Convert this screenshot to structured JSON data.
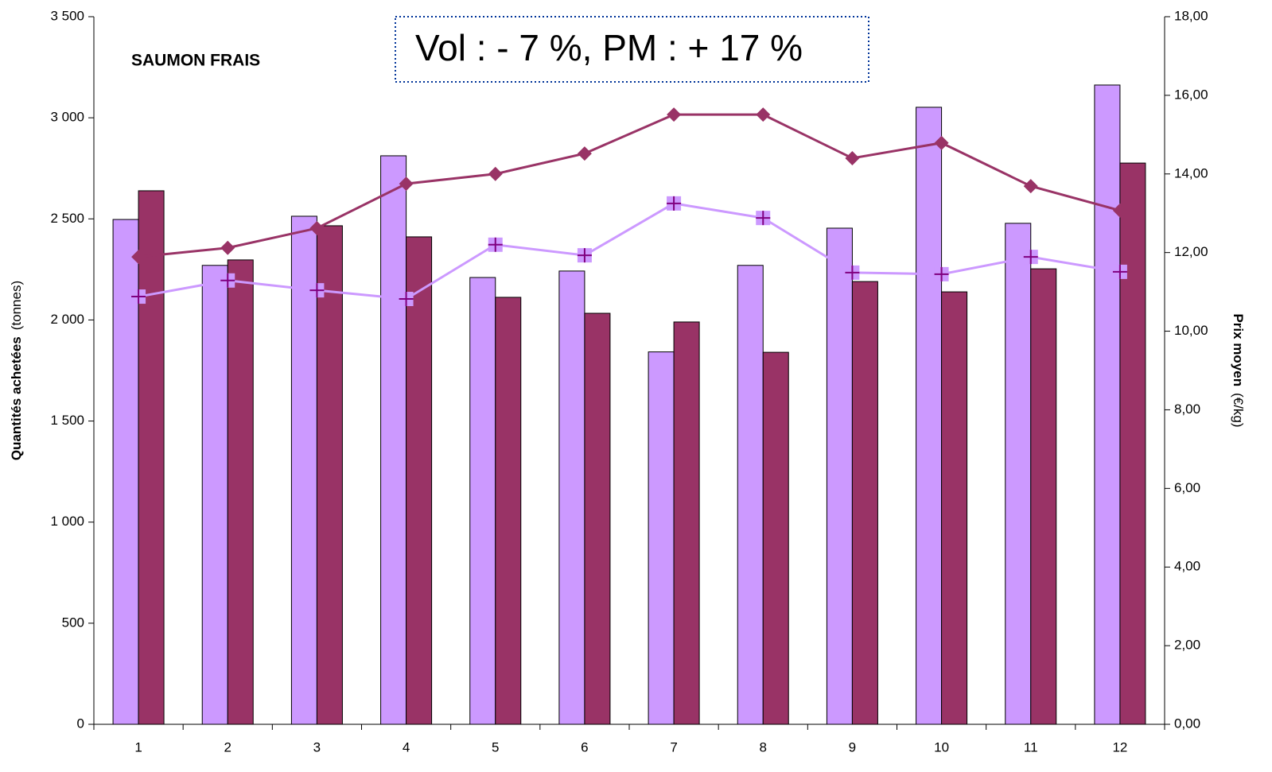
{
  "chart_data": {
    "type": "bar_line",
    "title": "SAUMON FRAIS",
    "title_color": "#ff00ff",
    "annotation": "Vol : - 7 %, PM : + 17 %",
    "annotation_color": "#003399",
    "y_label": {
      "main": "Quantités achetées",
      "unit": "(tonnes)"
    },
    "y2_label": {
      "main": "Prix moyen",
      "unit": "(€/kg)"
    },
    "categories": [
      "1",
      "2",
      "3",
      "4",
      "5",
      "6",
      "7",
      "8",
      "9",
      "10",
      "11",
      "12"
    ],
    "ylim": [
      0,
      3500
    ],
    "yticks": [
      0,
      500,
      {
        "value": 1000,
        "label": "1 000"
      },
      {
        "value": 1500,
        "label": "1 500"
      },
      {
        "value": 2000,
        "label": "2 000"
      },
      {
        "value": 2500,
        "label": "2 500"
      },
      {
        "value": 3000,
        "label": "3 000"
      },
      {
        "value": 3500,
        "label": "3 500"
      }
    ],
    "y2lim": [
      0,
      18
    ],
    "y2ticks": [
      {
        "value": 0,
        "label": "0,00"
      },
      {
        "value": 2,
        "label": "2,00"
      },
      {
        "value": 4,
        "label": "4,00"
      },
      {
        "value": 6,
        "label": "6,00"
      },
      {
        "value": 8,
        "label": "8,00"
      },
      {
        "value": 10,
        "label": "10,00"
      },
      {
        "value": 12,
        "label": "12,00"
      },
      {
        "value": 14,
        "label": "14,00"
      },
      {
        "value": 16,
        "label": "16,00"
      },
      {
        "value": 18,
        "label": "18,00"
      }
    ],
    "grid": false,
    "series": [
      {
        "type": "bar",
        "color": "#cc99ff",
        "values": [
          2497,
          2270,
          2513,
          2812,
          2210,
          2242,
          1842,
          2270,
          2454,
          3052,
          2478,
          3162
        ]
      },
      {
        "type": "bar",
        "color": "#993366",
        "values": [
          2639,
          2297,
          2466,
          2411,
          2112,
          2033,
          1990,
          1840,
          2190,
          2139,
          2253,
          2776
        ]
      },
      {
        "type": "line",
        "axis": "y2",
        "color": "#cc99ff",
        "marker": "plus",
        "marker_color": "#800080",
        "values": [
          10.88,
          11.29,
          11.04,
          10.82,
          12.2,
          11.93,
          13.25,
          12.88,
          11.49,
          11.45,
          11.89,
          11.51
        ]
      },
      {
        "type": "line",
        "axis": "y2",
        "color": "#993366",
        "marker": "diamond",
        "marker_color": "#993366",
        "values": [
          11.89,
          12.12,
          12.62,
          13.75,
          14.0,
          14.52,
          15.51,
          15.51,
          14.4,
          14.79,
          13.69,
          13.07
        ]
      }
    ]
  }
}
